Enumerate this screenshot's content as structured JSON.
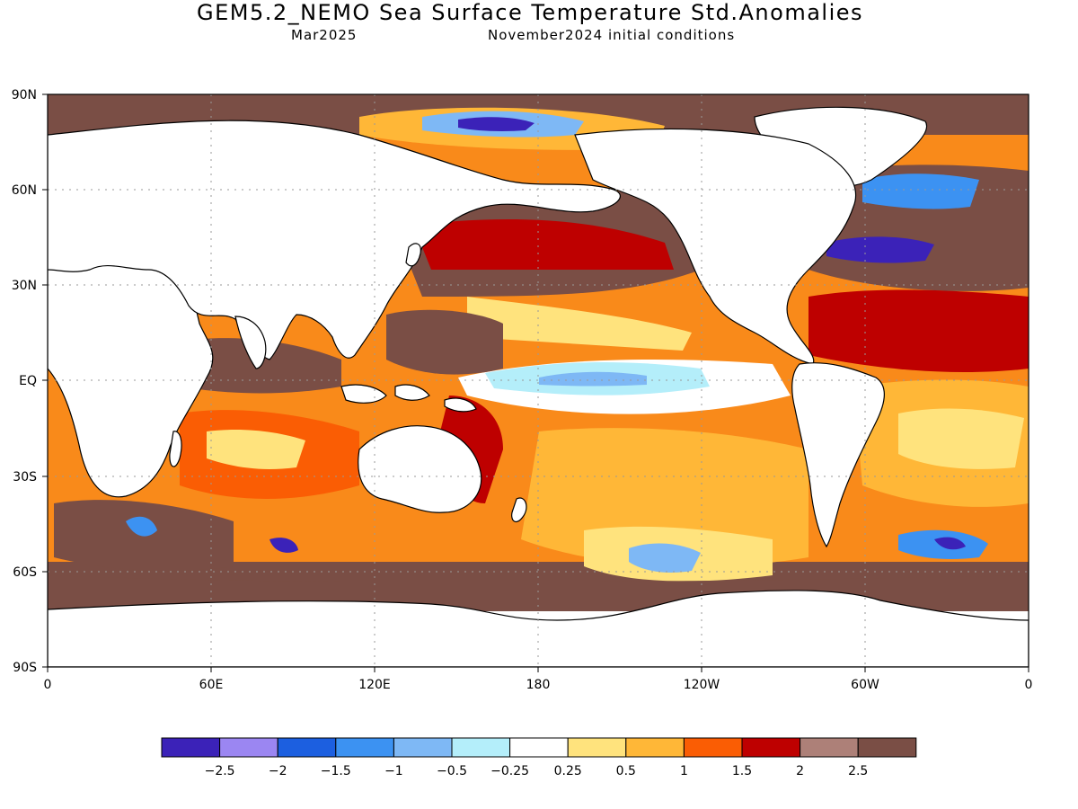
{
  "title": "GEM5.2_NEMO Sea Surface Temperature Std.Anomalies",
  "subtitle_left": "Mar2025",
  "subtitle_right": "November2024 initial conditions",
  "map": {
    "lat_ticks": [
      "90N",
      "60N",
      "30N",
      "EQ",
      "30S",
      "60S",
      "90S"
    ],
    "lon_ticks": [
      "0",
      "60E",
      "120E",
      "180",
      "120W",
      "60W",
      "0"
    ]
  },
  "colorbar": {
    "colors": [
      "#3b22b8",
      "#9b86f2",
      "#1c5fe0",
      "#3c92f2",
      "#7eb8f5",
      "#b4eefa",
      "#ffffff",
      "#ffe37d",
      "#ffb737",
      "#fa5d04",
      "#be0000",
      "#ad8078",
      "#7a4e45"
    ],
    "labels": [
      "−2.5",
      "−2",
      "−1.5",
      "−1",
      "−0.5",
      "−0.25",
      "0.25",
      "0.5",
      "1",
      "1.5",
      "2",
      "2.5"
    ]
  }
}
